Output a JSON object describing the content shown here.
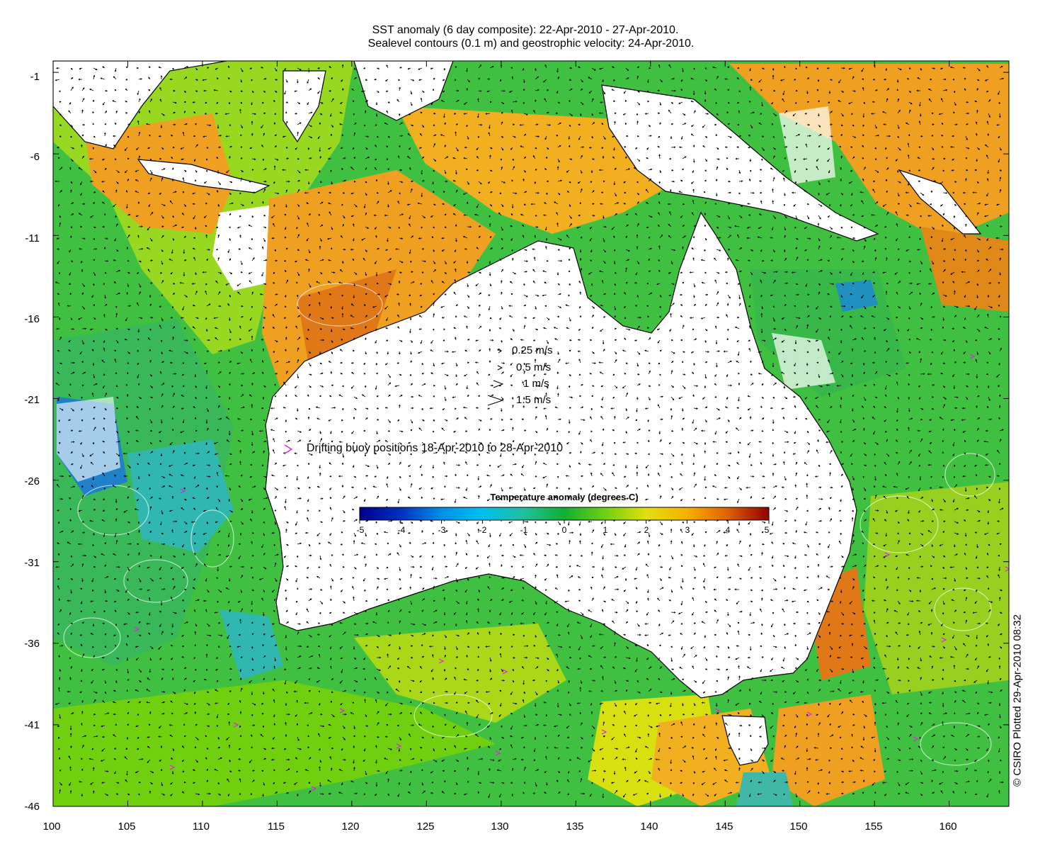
{
  "title": {
    "line1": "SST anomaly (6 day composite): 22-Apr-2010 - 27-Apr-2010.",
    "line2": "Sealevel contours (0.1 m) and geostrophic velocity: 24-Apr-2010."
  },
  "axes": {
    "x_ticks": [
      "100",
      "105",
      "110",
      "115",
      "120",
      "125",
      "130",
      "135",
      "140",
      "145",
      "150",
      "155",
      "160"
    ],
    "y_ticks": [
      "-1",
      "-6",
      "-11",
      "-16",
      "-21",
      "-26",
      "-31",
      "-36",
      "-41",
      "-46"
    ],
    "xlim": [
      100,
      164
    ],
    "ylim": [
      -46,
      -0.3
    ]
  },
  "velocity_legend": [
    {
      "label": "0.25 m/s",
      "speed": 0.25
    },
    {
      "label": "0.5 m/s",
      "speed": 0.5
    },
    {
      "label": "1 m/s",
      "speed": 1
    },
    {
      "label": "1.5 m/s",
      "speed": 1.5
    }
  ],
  "buoy_legend": {
    "symbol": ">",
    "label": "Drifting buoy positions 18-Apr-2010 to 28-Apr-2010",
    "color": "#e020e0"
  },
  "colorbar": {
    "title": "Temperature anomaly (degrees C)",
    "ticks": [
      "-5",
      "-4",
      "-3",
      "-2",
      "-1",
      "0",
      "1",
      "2",
      "3",
      "4",
      "5"
    ],
    "range": [
      -5,
      5
    ],
    "colors": [
      "#00008c",
      "#0040d0",
      "#00a0f0",
      "#20c8c8",
      "#20b870",
      "#10b020",
      "#70d010",
      "#d8e010",
      "#f8c000",
      "#f08000",
      "#d04000",
      "#900000"
    ]
  },
  "credit": "© CSIRO Plotted 29-Apr-2010 08:32",
  "colors": {
    "land": "#ffffff",
    "coast": "#000000",
    "warm": "#f0a020",
    "cool": "#40c040"
  }
}
